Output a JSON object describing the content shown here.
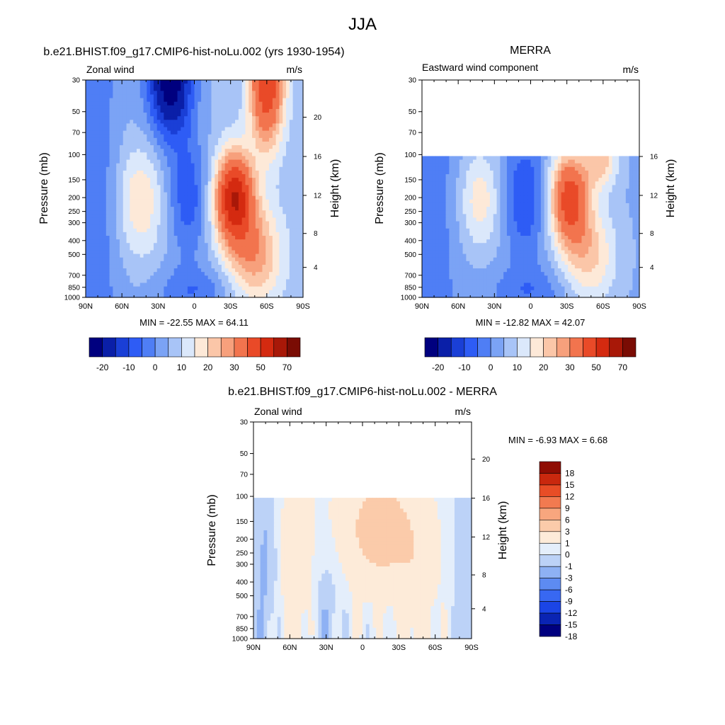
{
  "figure": {
    "title": "JJA"
  },
  "colors": {
    "levels_abs": [
      "#00007f",
      "#0a1fa8",
      "#1a3fd6",
      "#2e5cf5",
      "#4f7ef5",
      "#7ba3f5",
      "#a8c4f7",
      "#dbe8fb",
      "#fde9d8",
      "#fbc6a8",
      "#f7a07c",
      "#f2744e",
      "#e94a28",
      "#d42a10",
      "#a81808",
      "#7a0c04"
    ],
    "levels_diff": [
      "#00007f",
      "#0a24b3",
      "#1b45e6",
      "#3868f2",
      "#5d8bf2",
      "#8eb1f4",
      "#bcd2f7",
      "#e4eefb",
      "#fdebd9",
      "#fbcbaa",
      "#f8a67e",
      "#f27a50",
      "#e84d26",
      "#c9280e",
      "#8f0d03"
    ],
    "missing": "#ffffff"
  },
  "chart_data": [
    {
      "type": "heatmap",
      "title": "b.e21.BHIST.f09_g17.CMIP6-hist-noLu.002 (yrs 1930-1954)",
      "subtitle_left": "Zonal wind",
      "subtitle_right": "m/s",
      "ylabel": "Pressure (mb)",
      "ylabel_right": "Height (km)",
      "x_ticks": [
        "90N",
        "60N",
        "30N",
        "0",
        "30S",
        "60S",
        "90S"
      ],
      "y_ticks": [
        "30",
        "50",
        "70",
        "100",
        "150",
        "200",
        "250",
        "300",
        "400",
        "500",
        "700",
        "850",
        "1000"
      ],
      "right_ticks": [
        "20",
        "16",
        "12",
        "8",
        "4"
      ],
      "ylim": [
        1000,
        30
      ],
      "xlim": [
        90,
        -90
      ],
      "y_scale": "log",
      "min_label": "MIN = -22.55  MAX =  64.11",
      "min": -22.55,
      "max": 64.11,
      "colorbar_labels": [
        "-20",
        "-10",
        "0",
        "10",
        "20",
        "30",
        "50",
        "70"
      ],
      "colorbar_orientation": "horizontal"
    },
    {
      "type": "heatmap",
      "title": "MERRA",
      "subtitle_left": "Eastward wind component",
      "subtitle_right": "m/s",
      "ylabel": "Pressure (mb)",
      "ylabel_right": "Height (km)",
      "x_ticks": [
        "90N",
        "60N",
        "30N",
        "0",
        "30S",
        "60S",
        "90S"
      ],
      "y_ticks": [
        "30",
        "50",
        "70",
        "100",
        "150",
        "200",
        "250",
        "300",
        "400",
        "500",
        "700",
        "850",
        "1000"
      ],
      "right_ticks": [
        "16",
        "12",
        "8",
        "4"
      ],
      "ylim": [
        1000,
        30
      ],
      "xlim": [
        90,
        -90
      ],
      "y_scale": "log",
      "data_top_pressure": 100,
      "min_label": "MIN = -12.82  MAX =  42.07",
      "min": -12.82,
      "max": 42.07,
      "colorbar_labels": [
        "-20",
        "-10",
        "0",
        "10",
        "20",
        "30",
        "50",
        "70"
      ],
      "colorbar_orientation": "horizontal"
    },
    {
      "type": "heatmap",
      "title": "b.e21.BHIST.f09_g17.CMIP6-hist-noLu.002 - MERRA",
      "subtitle_left": "Zonal wind",
      "subtitle_right": "m/s",
      "ylabel": "Pressure (mb)",
      "ylabel_right": "Height (km)",
      "x_ticks": [
        "90N",
        "60N",
        "30N",
        "0",
        "30S",
        "60S",
        "90S"
      ],
      "y_ticks": [
        "30",
        "50",
        "70",
        "100",
        "150",
        "200",
        "250",
        "300",
        "400",
        "500",
        "700",
        "850",
        "1000"
      ],
      "right_ticks": [
        "20",
        "16",
        "12",
        "8",
        "4"
      ],
      "ylim": [
        1000,
        30
      ],
      "xlim": [
        90,
        -90
      ],
      "y_scale": "log",
      "data_top_pressure": 100,
      "min_label": "MIN =  -6.93  MAX =   6.68",
      "min": -6.93,
      "max": 6.68,
      "colorbar_labels": [
        "18",
        "15",
        "12",
        "9",
        "6",
        "3",
        "1",
        "0",
        "-1",
        "-3",
        "-6",
        "-9",
        "-12",
        "-15",
        "-18"
      ],
      "colorbar_orientation": "vertical"
    }
  ]
}
